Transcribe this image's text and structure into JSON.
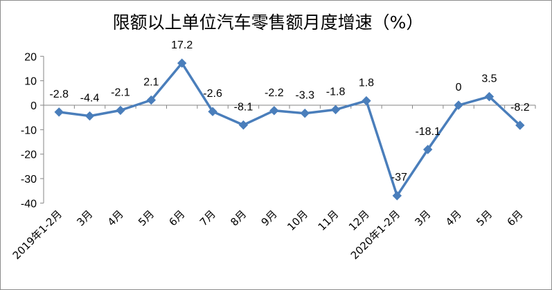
{
  "chart_data": {
    "type": "line",
    "title": "限额以上单位汽车零售额月度增速（%）",
    "xlabel": "",
    "ylabel": "",
    "ylim": [
      -40,
      20
    ],
    "yticks": [
      -40,
      -30,
      -20,
      -10,
      0,
      10,
      20
    ],
    "ytick_labels": [
      "-40",
      "-30",
      "-20",
      "-10",
      "0",
      "10",
      "20"
    ],
    "grid": false,
    "legend": "none",
    "categories": [
      "2019年1-2月",
      "3月",
      "4月",
      "5月",
      "6月",
      "7月",
      "8月",
      "9月",
      "10月",
      "11月",
      "12月",
      "2020年1-2月",
      "3月",
      "4月",
      "5月",
      "6月"
    ],
    "series": [
      {
        "values": [
          -2.8,
          -4.4,
          -2.1,
          2.1,
          17.2,
          -2.6,
          -8.1,
          -2.2,
          -3.3,
          -1.8,
          1.8,
          -37,
          -18.1,
          0,
          3.5,
          -8.2
        ],
        "labels": [
          "-2.8",
          "-4.4",
          "-2.1",
          "2.1",
          "17.2",
          "-2.6",
          "-8.1",
          "-2.2",
          "-3.3",
          "-1.8",
          "1.8",
          "-37",
          "-18.1",
          "0",
          "3.5",
          "-8.2"
        ],
        "color": "#4a7ebb",
        "marker": "diamond"
      }
    ]
  }
}
